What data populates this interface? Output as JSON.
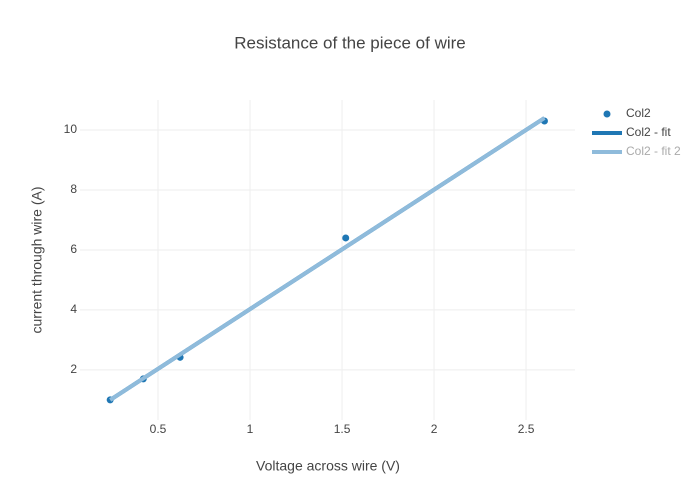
{
  "chart_data": {
    "type": "scatter",
    "title": "Resistance of the piece of wire",
    "x_label": "Voltage across wire (V)",
    "y_label": "current through wire (A)",
    "xlim": [
      0.076,
      2.766
    ],
    "ylim": [
      0.33,
      11
    ],
    "xticks": [
      0.5,
      1,
      1.5,
      2,
      2.5
    ],
    "yticks": [
      2,
      4,
      6,
      8,
      10
    ],
    "grid": true,
    "legend": "top-right",
    "series": [
      {
        "name": "Col2",
        "mode": "markers",
        "color": "#1f77b4",
        "legend_text_color": "#444",
        "x": [
          0.24,
          0.42,
          0.62,
          1.52,
          2.6
        ],
        "values": [
          1.0,
          1.7,
          2.42,
          6.4,
          10.3
        ],
        "errors": [
          0.1,
          0.1,
          0.1,
          0.1,
          0.1
        ]
      },
      {
        "name": "Col2 - fit",
        "mode": "lines",
        "color": "#1f77b4",
        "legend_text_color": "#444",
        "x": [
          0.24,
          2.6
        ],
        "values": [
          1.0,
          10.4
        ]
      },
      {
        "name": "Col2 - fit 2",
        "mode": "lines",
        "color": "#8fbbdb",
        "legend_text_color": "#aaa",
        "x": [
          0.24,
          2.6
        ],
        "values": [
          1.0,
          10.4
        ]
      }
    ]
  }
}
